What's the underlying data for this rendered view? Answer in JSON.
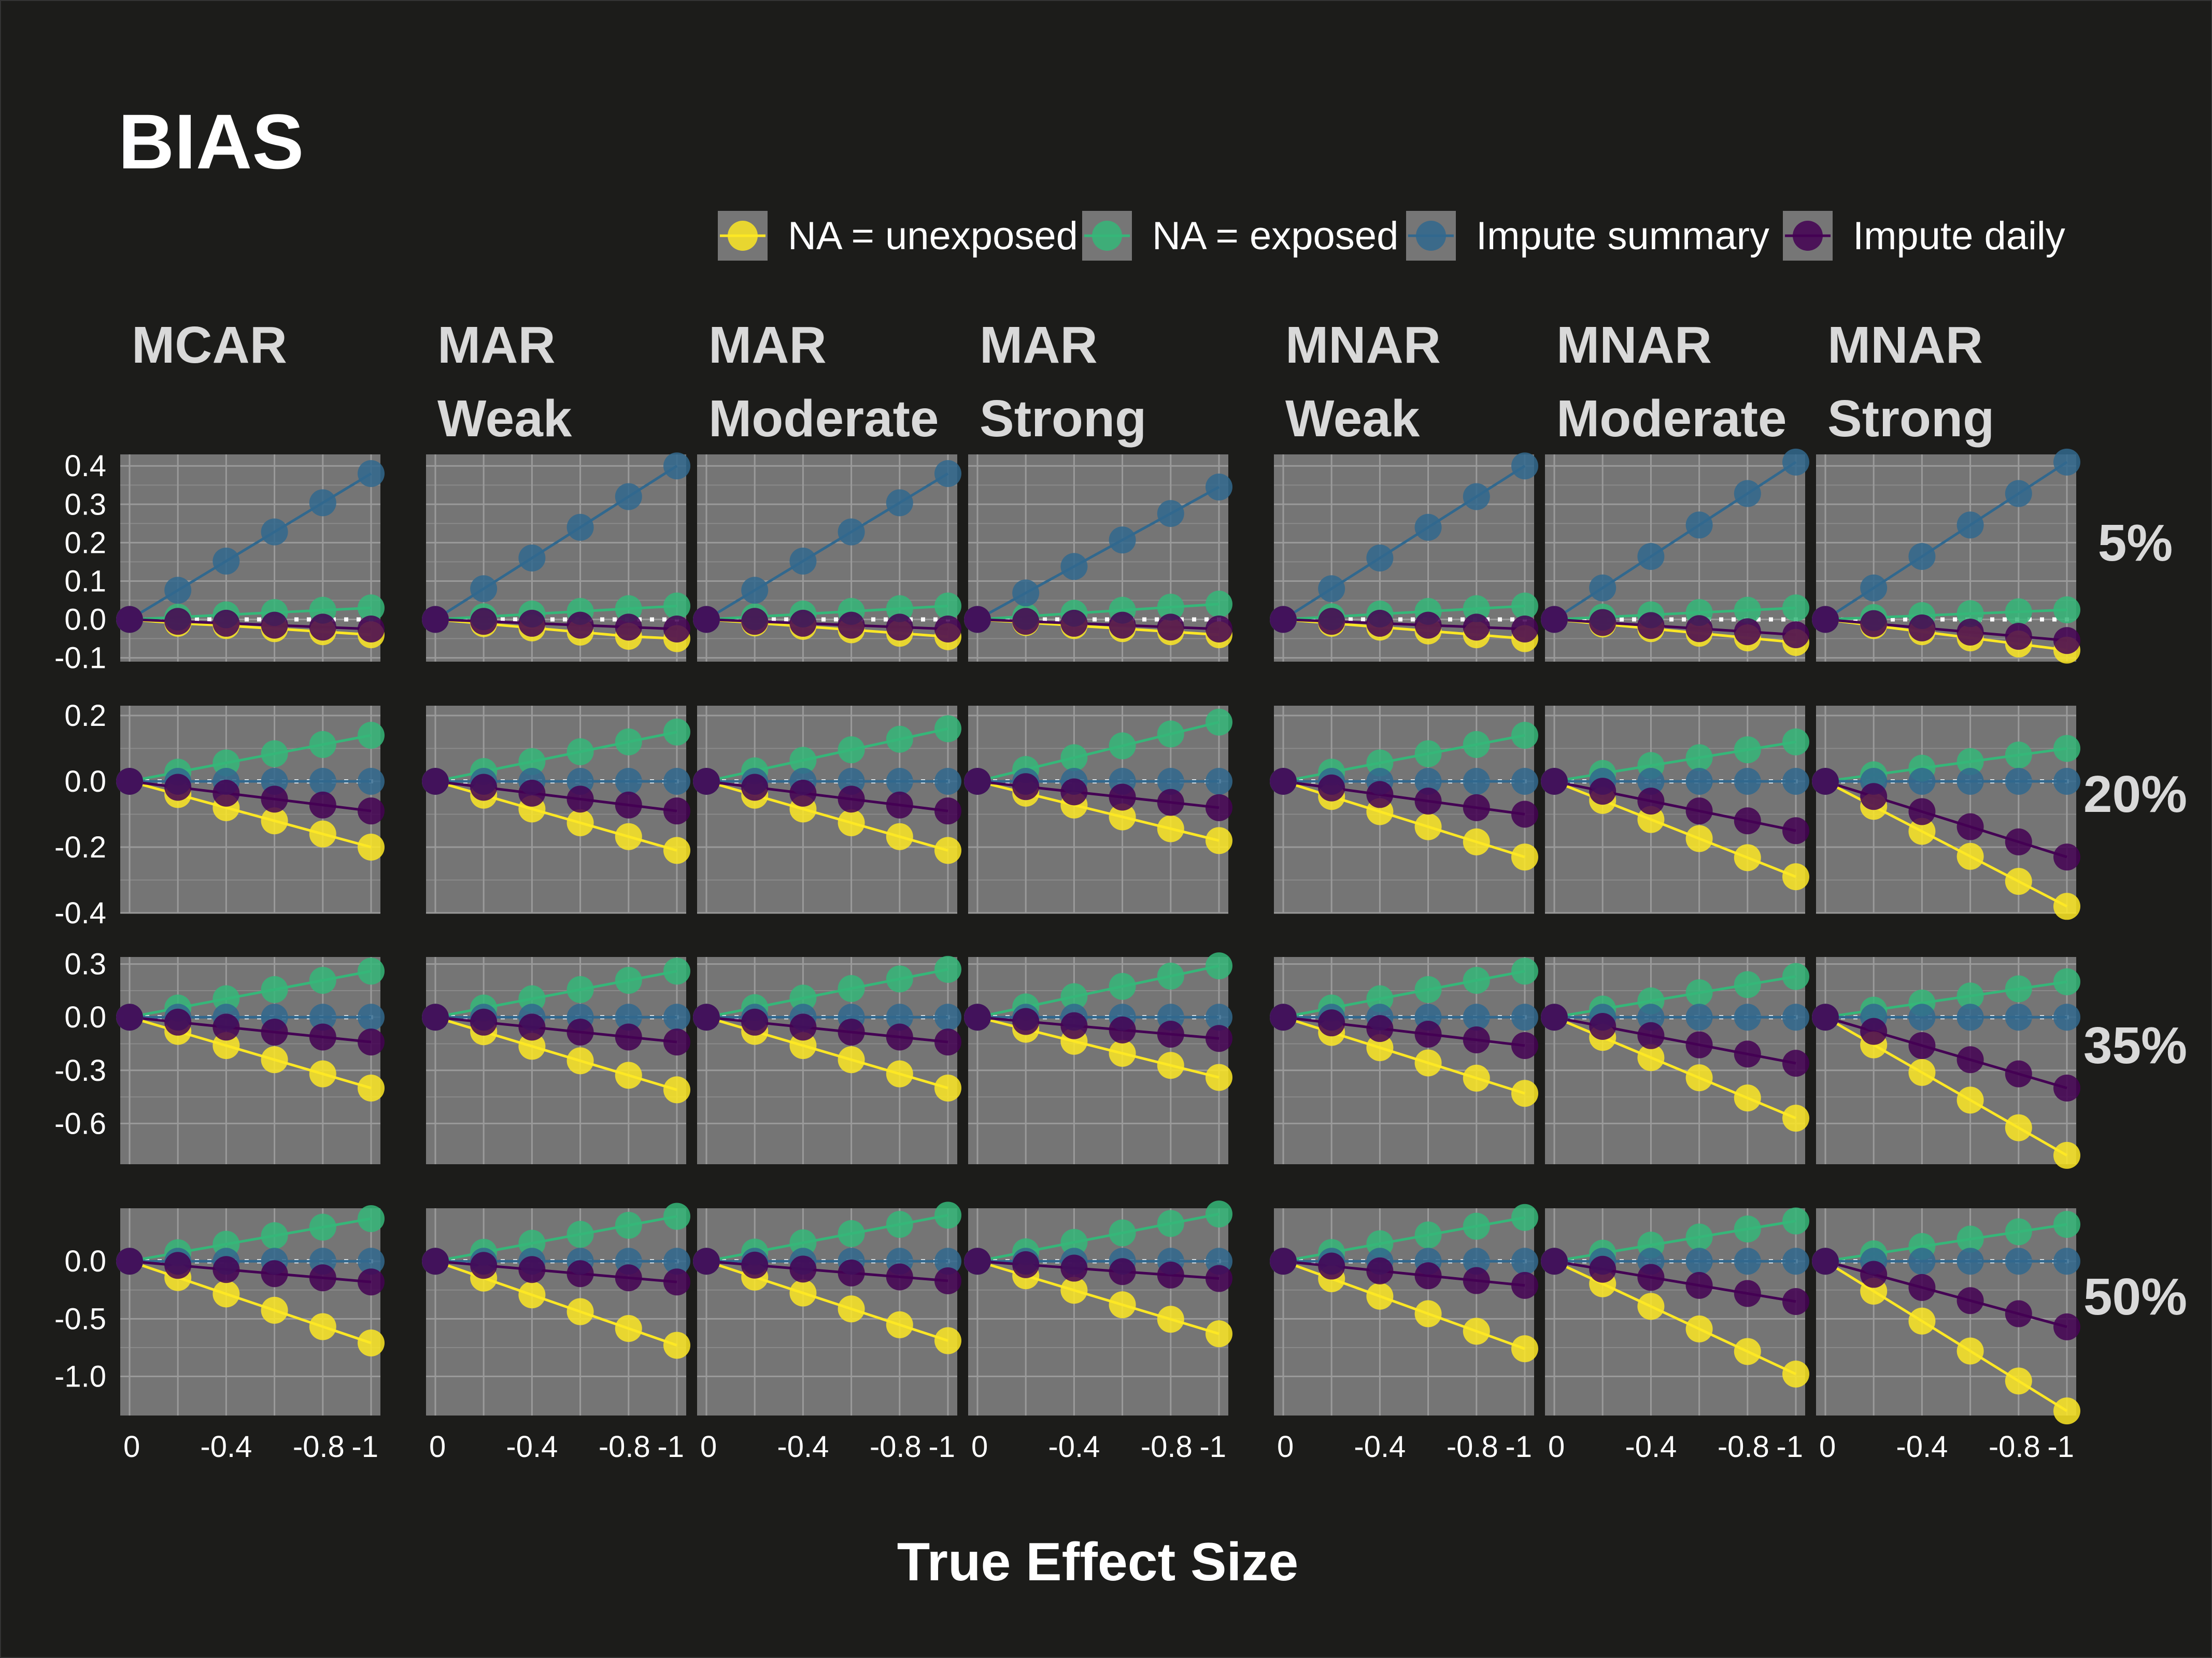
{
  "chart_data": {
    "type": "line",
    "title": "BIAS",
    "xlabel": "True Effect Size",
    "ylabel": "",
    "legend_position": "top-right",
    "x": [
      0,
      -0.2,
      -0.4,
      -0.6,
      -0.8,
      -1
    ],
    "x_ticks": [
      0,
      -0.4,
      -0.8,
      -1
    ],
    "x_tick_labels": [
      "0",
      "-0.4",
      "-0.8",
      "-1"
    ],
    "reference_line": {
      "y": 0,
      "style": "dotted",
      "color": "#ffffff"
    },
    "series_styles": [
      {
        "name": "NA = unexposed",
        "color": "#fde725"
      },
      {
        "name": "NA = exposed",
        "color": "#35b779"
      },
      {
        "name": "Impute summary",
        "color": "#31688e"
      },
      {
        "name": "Impute daily",
        "color": "#440154"
      }
    ],
    "columns": [
      {
        "line1": "MCAR",
        "line2": ""
      },
      {
        "line1": "MAR",
        "line2": "Weak"
      },
      {
        "line1": "MAR",
        "line2": "Moderate"
      },
      {
        "line1": "MAR",
        "line2": "Strong"
      },
      {
        "line1": "MNAR",
        "line2": "Weak"
      },
      {
        "line1": "MNAR",
        "line2": "Moderate"
      },
      {
        "line1": "MNAR",
        "line2": "Strong"
      }
    ],
    "rows": [
      {
        "label": "5%",
        "ylim": [
          -0.11,
          0.43
        ],
        "y_ticks": [
          0.4,
          0.3,
          0.2,
          0.1,
          0.0,
          -0.1
        ],
        "y_tick_labels": [
          "0.4",
          "0.3",
          "0.2",
          "0.1",
          "0.0",
          "-0.1"
        ]
      },
      {
        "label": "20%",
        "ylim": [
          -0.4,
          0.23
        ],
        "y_ticks": [
          0.2,
          0.0,
          -0.2,
          -0.4
        ],
        "y_tick_labels": [
          "0.2",
          "0.0",
          "-0.2",
          "-0.4"
        ]
      },
      {
        "label": "35%",
        "ylim": [
          -0.83,
          0.34
        ],
        "y_ticks": [
          0.3,
          0.0,
          -0.3,
          -0.6
        ],
        "y_tick_labels": [
          "0.3",
          "0.0",
          "-0.3",
          "-0.6"
        ]
      },
      {
        "label": "50%",
        "ylim": [
          -1.34,
          0.46
        ],
        "y_ticks": [
          0.0,
          -0.5,
          -1.0
        ],
        "y_tick_labels": [
          "0.0",
          "-0.5",
          "-1.0"
        ]
      }
    ],
    "panels": [
      [
        [
          [
            0,
            -0.01,
            -0.016,
            -0.024,
            -0.032,
            -0.04
          ],
          [
            0,
            0.006,
            0.012,
            0.018,
            0.024,
            0.03
          ],
          [
            0,
            0.076,
            0.152,
            0.228,
            0.304,
            0.38
          ],
          [
            0,
            -0.005,
            -0.01,
            -0.015,
            -0.02,
            -0.025
          ]
        ],
        [
          [
            0,
            -0.011,
            -0.022,
            -0.033,
            -0.044,
            -0.05
          ],
          [
            0,
            0.007,
            0.014,
            0.021,
            0.028,
            0.035
          ],
          [
            0,
            0.08,
            0.16,
            0.24,
            0.32,
            0.4
          ],
          [
            0,
            -0.005,
            -0.01,
            -0.015,
            -0.02,
            -0.025
          ]
        ],
        [
          [
            0,
            -0.009,
            -0.018,
            -0.027,
            -0.036,
            -0.045
          ],
          [
            0,
            0.007,
            0.014,
            0.021,
            0.028,
            0.035
          ],
          [
            0,
            0.076,
            0.152,
            0.228,
            0.304,
            0.38
          ],
          [
            0,
            -0.005,
            -0.01,
            -0.015,
            -0.02,
            -0.025
          ]
        ],
        [
          [
            0,
            -0.008,
            -0.016,
            -0.024,
            -0.032,
            -0.04
          ],
          [
            0,
            0.008,
            0.016,
            0.024,
            0.032,
            0.04
          ],
          [
            0,
            0.069,
            0.138,
            0.207,
            0.276,
            0.345
          ],
          [
            0,
            -0.005,
            -0.01,
            -0.015,
            -0.02,
            -0.025
          ]
        ],
        [
          [
            0,
            -0.01,
            -0.02,
            -0.03,
            -0.04,
            -0.05
          ],
          [
            0,
            0.007,
            0.014,
            0.021,
            0.028,
            0.035
          ],
          [
            0,
            0.08,
            0.16,
            0.24,
            0.32,
            0.4
          ],
          [
            0,
            -0.005,
            -0.01,
            -0.015,
            -0.02,
            -0.025
          ]
        ],
        [
          [
            0,
            -0.012,
            -0.024,
            -0.036,
            -0.048,
            -0.06
          ],
          [
            0,
            0.006,
            0.012,
            0.018,
            0.024,
            0.03
          ],
          [
            0,
            0.082,
            0.164,
            0.246,
            0.328,
            0.41
          ],
          [
            0,
            -0.008,
            -0.016,
            -0.024,
            -0.032,
            -0.04
          ]
        ],
        [
          [
            0,
            -0.016,
            -0.032,
            -0.048,
            -0.064,
            -0.08
          ],
          [
            0,
            0.005,
            0.01,
            0.015,
            0.02,
            0.025
          ],
          [
            0,
            0.082,
            0.164,
            0.246,
            0.328,
            0.41
          ],
          [
            0,
            -0.011,
            -0.022,
            -0.033,
            -0.044,
            -0.055
          ]
        ]
      ],
      [
        [
          [
            0,
            -0.04,
            -0.08,
            -0.12,
            -0.16,
            -0.2
          ],
          [
            0,
            0.028,
            0.056,
            0.084,
            0.112,
            0.14
          ],
          [
            0,
            0,
            0,
            0,
            0,
            0
          ],
          [
            0,
            -0.018,
            -0.036,
            -0.054,
            -0.072,
            -0.09
          ]
        ],
        [
          [
            0,
            -0.042,
            -0.084,
            -0.126,
            -0.168,
            -0.21
          ],
          [
            0,
            0.03,
            0.06,
            0.09,
            0.12,
            0.15
          ],
          [
            0,
            0,
            0,
            0,
            0,
            0
          ],
          [
            0,
            -0.018,
            -0.036,
            -0.054,
            -0.072,
            -0.09
          ]
        ],
        [
          [
            0,
            -0.042,
            -0.084,
            -0.126,
            -0.168,
            -0.21
          ],
          [
            0,
            0.032,
            0.064,
            0.096,
            0.128,
            0.16
          ],
          [
            0,
            0,
            0,
            0,
            0,
            0
          ],
          [
            0,
            -0.018,
            -0.036,
            -0.054,
            -0.072,
            -0.09
          ]
        ],
        [
          [
            0,
            -0.036,
            -0.072,
            -0.108,
            -0.144,
            -0.18
          ],
          [
            0,
            0.036,
            0.072,
            0.108,
            0.144,
            0.18
          ],
          [
            0,
            0,
            0,
            0,
            0,
            0
          ],
          [
            0,
            -0.016,
            -0.032,
            -0.048,
            -0.064,
            -0.08
          ]
        ],
        [
          [
            0,
            -0.046,
            -0.092,
            -0.138,
            -0.184,
            -0.23
          ],
          [
            0,
            0.028,
            0.056,
            0.084,
            0.112,
            0.14
          ],
          [
            0,
            0,
            0,
            0,
            0,
            0
          ],
          [
            0,
            -0.02,
            -0.04,
            -0.06,
            -0.08,
            -0.1
          ]
        ],
        [
          [
            0,
            -0.058,
            -0.116,
            -0.174,
            -0.232,
            -0.29
          ],
          [
            0,
            0.024,
            0.048,
            0.072,
            0.096,
            0.12
          ],
          [
            0,
            0,
            0,
            0,
            0,
            0
          ],
          [
            0,
            -0.03,
            -0.06,
            -0.09,
            -0.12,
            -0.15
          ]
        ],
        [
          [
            0,
            -0.076,
            -0.152,
            -0.228,
            -0.304,
            -0.38
          ],
          [
            0,
            0.02,
            0.04,
            0.06,
            0.08,
            0.1
          ],
          [
            0,
            0,
            0,
            0,
            0,
            0
          ],
          [
            0,
            -0.046,
            -0.092,
            -0.138,
            -0.184,
            -0.23
          ]
        ]
      ],
      [
        [
          [
            0,
            -0.08,
            -0.16,
            -0.24,
            -0.32,
            -0.4
          ],
          [
            0,
            0.052,
            0.104,
            0.156,
            0.208,
            0.26
          ],
          [
            0,
            0,
            0,
            0,
            0,
            0
          ],
          [
            0,
            -0.028,
            -0.056,
            -0.084,
            -0.112,
            -0.14
          ]
        ],
        [
          [
            0,
            -0.082,
            -0.164,
            -0.246,
            -0.328,
            -0.41
          ],
          [
            0,
            0.052,
            0.104,
            0.156,
            0.208,
            0.26
          ],
          [
            0,
            0,
            0,
            0,
            0,
            0
          ],
          [
            0,
            -0.028,
            -0.056,
            -0.084,
            -0.112,
            -0.14
          ]
        ],
        [
          [
            0,
            -0.08,
            -0.16,
            -0.24,
            -0.32,
            -0.4
          ],
          [
            0,
            0.054,
            0.108,
            0.162,
            0.216,
            0.27
          ],
          [
            0,
            0,
            0,
            0,
            0,
            0
          ],
          [
            0,
            -0.028,
            -0.056,
            -0.084,
            -0.112,
            -0.14
          ]
        ],
        [
          [
            0,
            -0.068,
            -0.136,
            -0.204,
            -0.272,
            -0.34
          ],
          [
            0,
            0.058,
            0.116,
            0.174,
            0.232,
            0.29
          ],
          [
            0,
            0,
            0,
            0,
            0,
            0
          ],
          [
            0,
            -0.024,
            -0.048,
            -0.072,
            -0.096,
            -0.12
          ]
        ],
        [
          [
            0,
            -0.086,
            -0.172,
            -0.258,
            -0.344,
            -0.43
          ],
          [
            0,
            0.052,
            0.104,
            0.156,
            0.208,
            0.26
          ],
          [
            0,
            0,
            0,
            0,
            0,
            0
          ],
          [
            0,
            -0.032,
            -0.064,
            -0.096,
            -0.128,
            -0.16
          ]
        ],
        [
          [
            0,
            -0.114,
            -0.228,
            -0.342,
            -0.456,
            -0.57
          ],
          [
            0,
            0.046,
            0.092,
            0.138,
            0.184,
            0.23
          ],
          [
            0,
            0,
            0,
            0,
            0,
            0
          ],
          [
            0,
            -0.052,
            -0.104,
            -0.156,
            -0.208,
            -0.26
          ]
        ],
        [
          [
            0,
            -0.156,
            -0.312,
            -0.468,
            -0.624,
            -0.78
          ],
          [
            0,
            0.04,
            0.08,
            0.12,
            0.16,
            0.2
          ],
          [
            0,
            0,
            0,
            0,
            0,
            0
          ],
          [
            0,
            -0.08,
            -0.16,
            -0.24,
            -0.32,
            -0.4
          ]
        ]
      ],
      [
        [
          [
            0,
            -0.142,
            -0.284,
            -0.426,
            -0.568,
            -0.71
          ],
          [
            0,
            0.074,
            0.148,
            0.222,
            0.296,
            0.37
          ],
          [
            0,
            0,
            0,
            0,
            0,
            0
          ],
          [
            0,
            -0.036,
            -0.072,
            -0.108,
            -0.144,
            -0.18
          ]
        ],
        [
          [
            0,
            -0.146,
            -0.292,
            -0.438,
            -0.584,
            -0.73
          ],
          [
            0,
            0.078,
            0.156,
            0.234,
            0.312,
            0.39
          ],
          [
            0,
            0,
            0,
            0,
            0,
            0
          ],
          [
            0,
            -0.036,
            -0.072,
            -0.108,
            -0.144,
            -0.18
          ]
        ],
        [
          [
            0,
            -0.138,
            -0.276,
            -0.414,
            -0.552,
            -0.69
          ],
          [
            0,
            0.08,
            0.16,
            0.24,
            0.32,
            0.4
          ],
          [
            0,
            0,
            0,
            0,
            0,
            0
          ],
          [
            0,
            -0.034,
            -0.068,
            -0.102,
            -0.136,
            -0.17
          ]
        ],
        [
          [
            0,
            -0.126,
            -0.252,
            -0.378,
            -0.504,
            -0.63
          ],
          [
            0,
            0.082,
            0.164,
            0.246,
            0.328,
            0.41
          ],
          [
            0,
            0,
            0,
            0,
            0,
            0
          ],
          [
            0,
            -0.03,
            -0.06,
            -0.09,
            -0.12,
            -0.15
          ]
        ],
        [
          [
            0,
            -0.152,
            -0.304,
            -0.456,
            -0.608,
            -0.76
          ],
          [
            0,
            0.076,
            0.152,
            0.228,
            0.304,
            0.38
          ],
          [
            0,
            0,
            0,
            0,
            0,
            0
          ],
          [
            0,
            -0.042,
            -0.084,
            -0.126,
            -0.168,
            -0.21
          ]
        ],
        [
          [
            0,
            -0.196,
            -0.392,
            -0.588,
            -0.784,
            -0.98
          ],
          [
            0,
            0.07,
            0.14,
            0.21,
            0.28,
            0.35
          ],
          [
            0,
            0,
            0,
            0,
            0,
            0
          ],
          [
            0,
            -0.07,
            -0.14,
            -0.21,
            -0.28,
            -0.35
          ]
        ],
        [
          [
            0,
            -0.26,
            -0.52,
            -0.78,
            -1.04,
            -1.3
          ],
          [
            0,
            0.064,
            0.128,
            0.192,
            0.256,
            0.32
          ],
          [
            0,
            0,
            0,
            0,
            0,
            0
          ],
          [
            0,
            -0.114,
            -0.228,
            -0.342,
            -0.456,
            -0.57
          ]
        ]
      ]
    ]
  }
}
